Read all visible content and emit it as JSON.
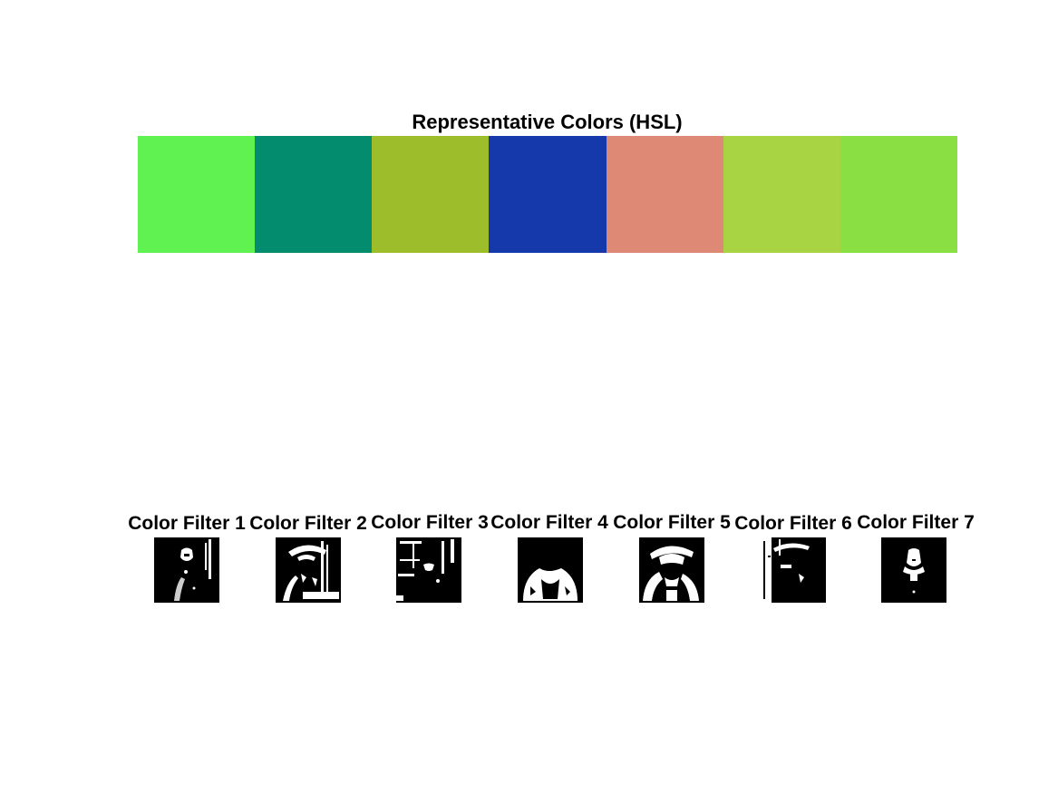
{
  "figure": {
    "title": "Representative Colors (HSL)",
    "swatches": [
      {
        "color": "#60f250"
      },
      {
        "color": "#038d6e"
      },
      {
        "color": "#9ebd2b"
      },
      {
        "color": "#1538ab"
      },
      {
        "color": "#de8976"
      },
      {
        "color": "#a8d343"
      },
      {
        "color": "#8ae042"
      }
    ],
    "filters": [
      {
        "title": "Color Filter 1",
        "icon": "binary-mask-thumbnail"
      },
      {
        "title": "Color Filter 2",
        "icon": "binary-mask-thumbnail"
      },
      {
        "title": "Color Filter 3",
        "icon": "binary-mask-thumbnail"
      },
      {
        "title": "Color Filter 4",
        "icon": "binary-mask-thumbnail"
      },
      {
        "title": "Color Filter 5",
        "icon": "binary-mask-thumbnail"
      },
      {
        "title": "Color Filter 6",
        "icon": "binary-mask-thumbnail"
      },
      {
        "title": "Color Filter 7",
        "icon": "binary-mask-thumbnail"
      }
    ]
  }
}
